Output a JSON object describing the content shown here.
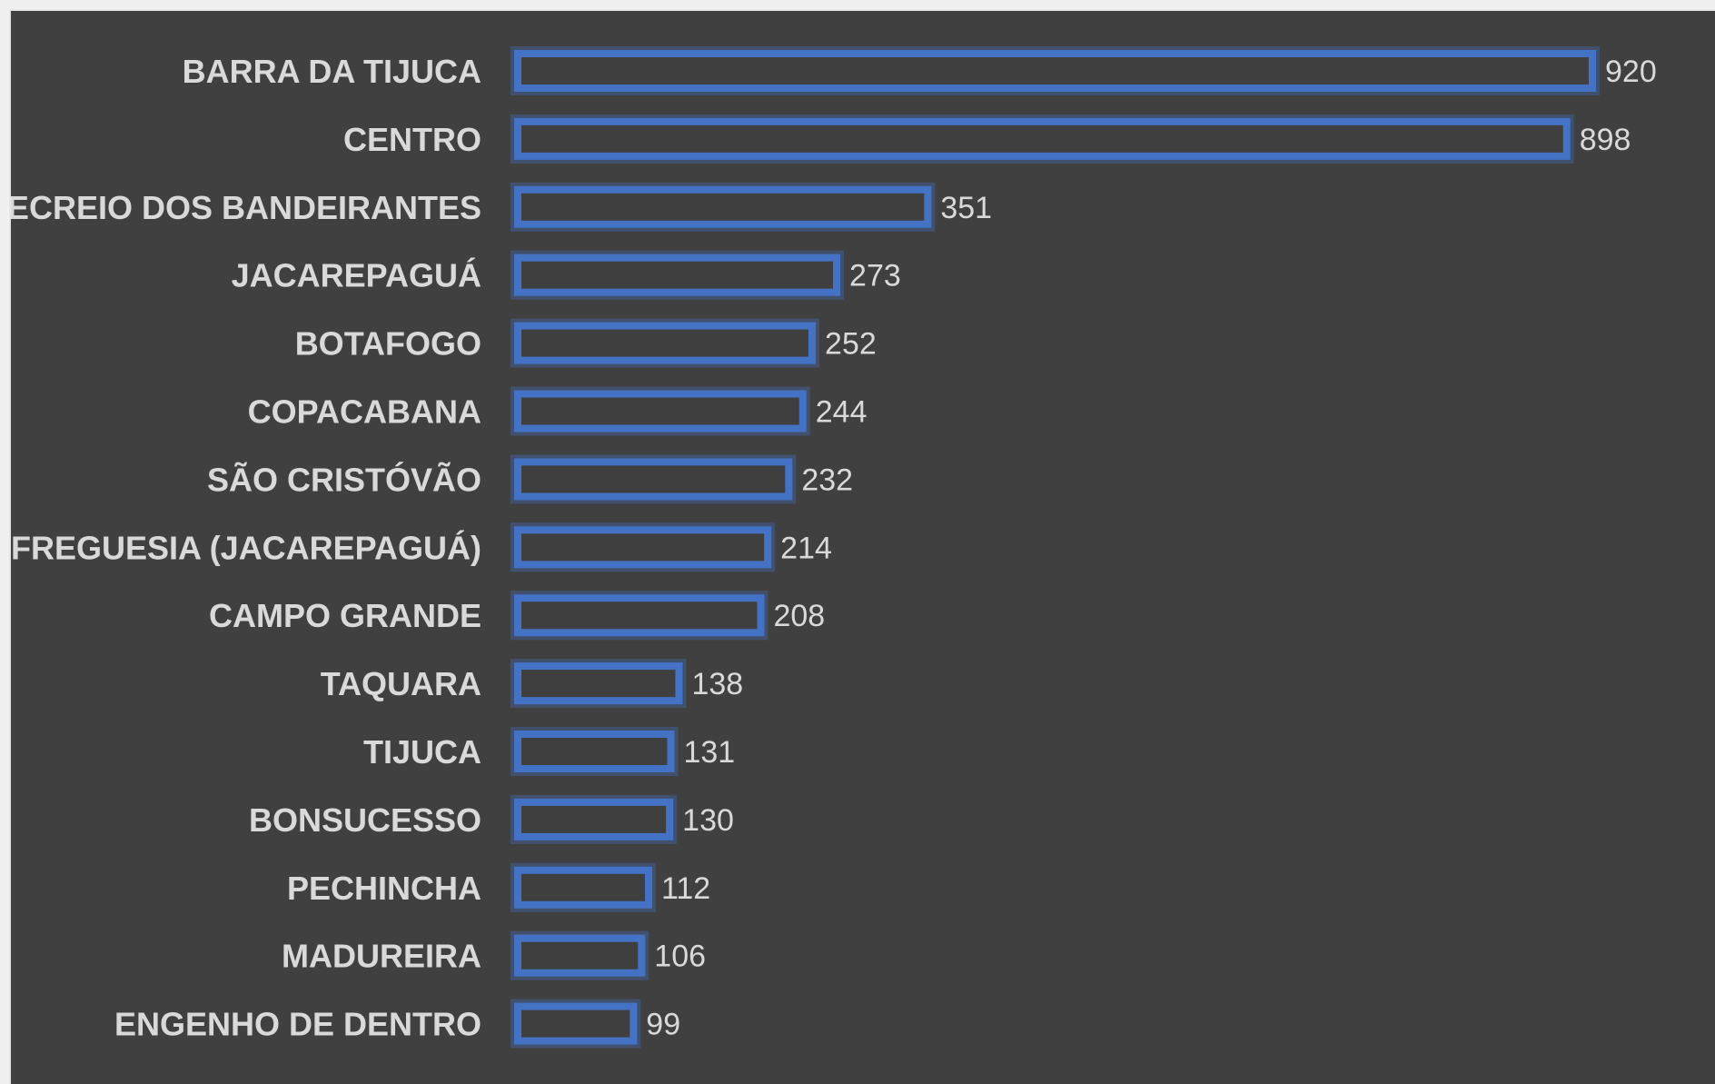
{
  "chart_data": {
    "type": "bar",
    "orientation": "horizontal",
    "categories": [
      "BARRA DA TIJUCA",
      "CENTRO",
      "RECREIO DOS BANDEIRANTES",
      "JACAREPAGUÁ",
      "BOTAFOGO",
      "COPACABANA",
      "SÃO CRISTÓVÃO",
      "FREGUESIA (JACAREPAGUÁ)",
      "CAMPO GRANDE",
      "TAQUARA",
      "TIJUCA",
      "BONSUCESSO",
      "PECHINCHA",
      "MADUREIRA",
      "ENGENHO DE DENTRO"
    ],
    "values": [
      920,
      898,
      351,
      273,
      252,
      244,
      232,
      214,
      208,
      138,
      131,
      130,
      112,
      106,
      99
    ],
    "title": "",
    "xlabel": "",
    "ylabel": "",
    "xlim": [
      0,
      920
    ],
    "grid": false,
    "legend": "none",
    "data_labels": true,
    "colors": {
      "background": "#404040",
      "bar_outline": "#4472c4",
      "bar_fill": "#3f3f3f",
      "text": "#d9d9d9"
    }
  }
}
